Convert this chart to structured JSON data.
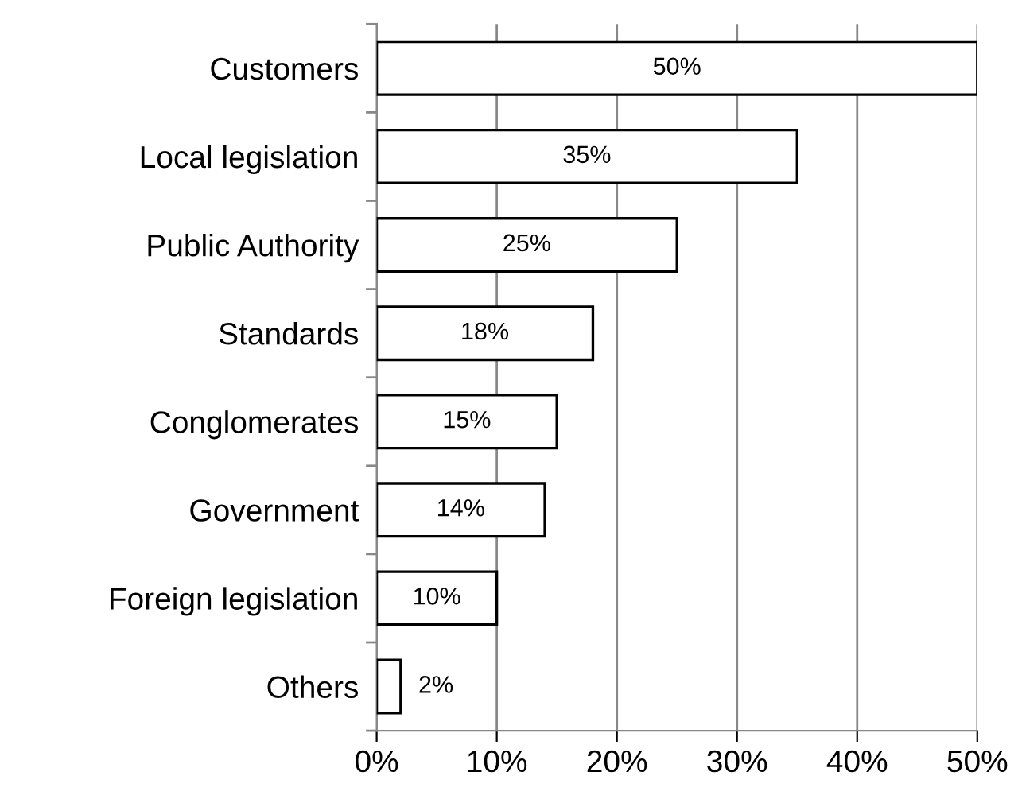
{
  "chart_data": {
    "type": "bar",
    "orientation": "horizontal",
    "categories": [
      "Customers",
      "Local legislation",
      "Public Authority",
      "Standards",
      "Conglomerates",
      "Government",
      "Foreign legislation",
      "Others"
    ],
    "values": [
      50,
      35,
      25,
      18,
      15,
      14,
      10,
      2
    ],
    "value_labels": [
      "50%",
      "35%",
      "25%",
      "18%",
      "15%",
      "14%",
      "10%",
      "2%"
    ],
    "color": "#ffffff",
    "xlim": [
      0,
      50
    ],
    "xticks": [
      {
        "value": 0,
        "label": "0%"
      },
      {
        "value": 10,
        "label": "10%"
      },
      {
        "value": 20,
        "label": "20%"
      },
      {
        "value": 30,
        "label": "30%"
      },
      {
        "value": 40,
        "label": "40%"
      },
      {
        "value": 50,
        "label": "50%"
      }
    ],
    "grid": "x",
    "legend": false
  }
}
